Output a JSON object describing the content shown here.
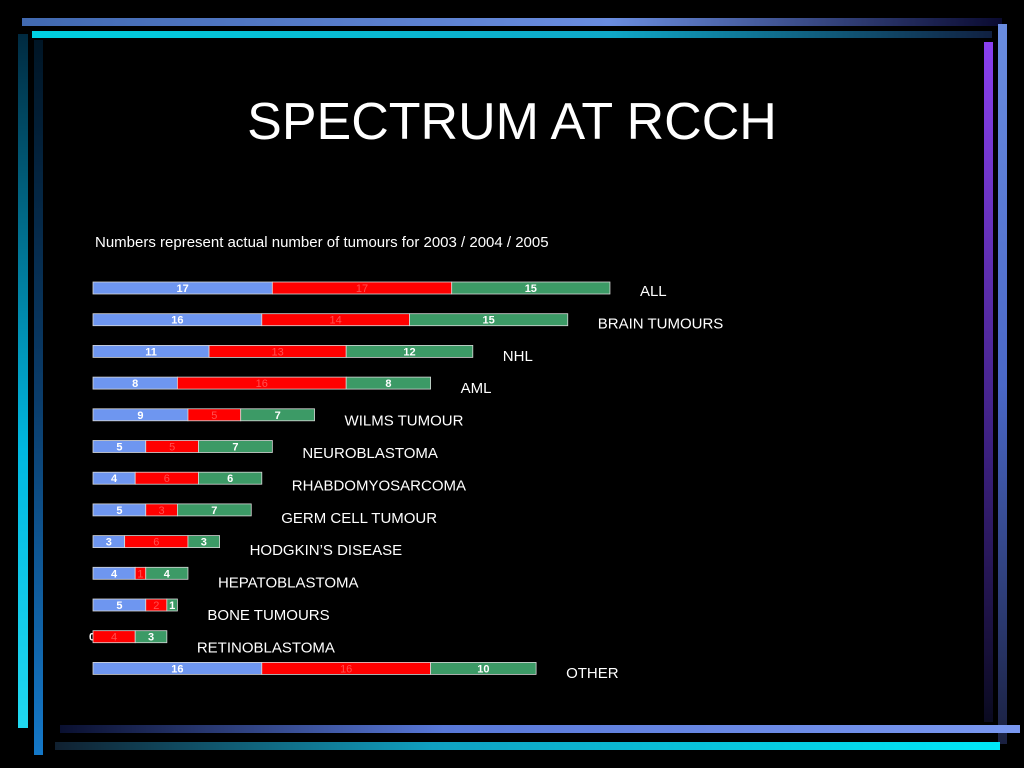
{
  "slide": {
    "title": "SPECTRUM AT RCCH",
    "subtitle": "Numbers represent actual number of tumours for 2003 / 2004 / 2005"
  },
  "colors": {
    "series_2003": "#6e96f0",
    "series_2004": "#ff0000",
    "series_2005": "#3c9a66",
    "label_2003": "#ffffff",
    "label_2004": "#ff5050",
    "label_2005": "#ffffff"
  },
  "chart_data": {
    "type": "bar",
    "orientation": "horizontal",
    "stacked": true,
    "categories": [
      "ALL",
      "BRAIN TUMOURS",
      "NHL",
      "AML",
      "WILMS TUMOUR",
      "NEUROBLASTOMA",
      "RHABDOMYOSARCOMA",
      "GERM CELL TUMOUR",
      "HODGKIN’S DISEASE",
      "HEPATOBLASTOMA",
      "BONE TUMOURS",
      "RETINOBLASTOMA",
      "OTHER"
    ],
    "series": [
      {
        "values": [
          17,
          16,
          11,
          8,
          9,
          5,
          4,
          5,
          3,
          4,
          5,
          0,
          16
        ]
      },
      {
        "values": [
          17,
          14,
          13,
          16,
          5,
          5,
          6,
          3,
          6,
          1,
          2,
          4,
          16
        ]
      },
      {
        "values": [
          15,
          15,
          12,
          8,
          7,
          7,
          6,
          7,
          3,
          4,
          1,
          3,
          10
        ]
      }
    ],
    "xlim": [
      0,
      49
    ],
    "grid": false,
    "legend": "none"
  }
}
